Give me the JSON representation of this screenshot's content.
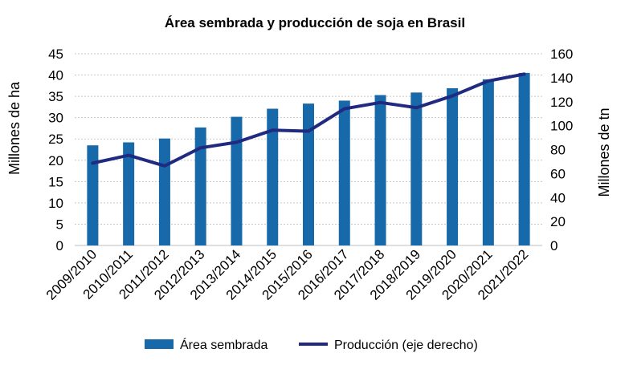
{
  "chart_data": {
    "type": "bar",
    "title": "Área sembrada y producción de soja en Brasil",
    "categories": [
      "2009/2010",
      "2010/2011",
      "2011/2012",
      "2012/2013",
      "2013/2014",
      "2014/2015",
      "2015/2016",
      "2016/2017",
      "2017/2018",
      "2018/2019",
      "2019/2020",
      "2020/2021",
      "2021/2022"
    ],
    "series": [
      {
        "name": "Área sembrada",
        "type": "bar",
        "axis": "left",
        "color": "#1769aa",
        "values": [
          23.5,
          24.2,
          25.1,
          27.7,
          30.2,
          32.1,
          33.3,
          34.0,
          35.3,
          35.9,
          36.9,
          39.0,
          40.5
        ]
      },
      {
        "name": "Producción (eje derecho)",
        "type": "line",
        "axis": "right",
        "color": "#1f2a80",
        "values": [
          68.7,
          75.3,
          66.4,
          81.5,
          86.1,
          96.2,
          95.4,
          114.1,
          119.3,
          115.0,
          124.8,
          137.3,
          143.0
        ]
      }
    ],
    "ylabel": "Millones de ha",
    "y2label": "Millones de tn",
    "ylim": [
      0,
      45
    ],
    "y2lim": [
      0,
      160
    ],
    "yticks": [
      "0",
      "5",
      "10",
      "15",
      "20",
      "25",
      "30",
      "35",
      "40",
      "45"
    ],
    "y2ticks": [
      "0",
      "20",
      "40",
      "60",
      "80",
      "100",
      "120",
      "140",
      "160"
    ],
    "grid": true,
    "legend_position": "bottom"
  }
}
